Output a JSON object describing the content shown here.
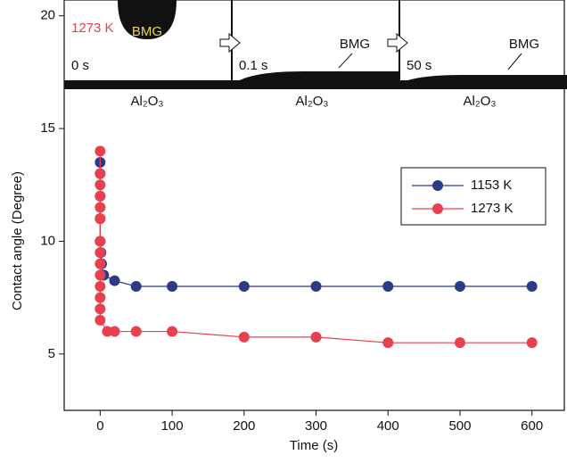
{
  "chart_data": {
    "type": "line",
    "x_label": "Time (s)",
    "y_label": "Contact angle (Degree)",
    "xlim": [
      -50,
      645
    ],
    "xticks": [
      0,
      100,
      200,
      300,
      400,
      500,
      600
    ],
    "ylim": [
      2.5,
      20.7
    ],
    "yticks": [
      5,
      10,
      15,
      20
    ],
    "legend": "upper right",
    "series": [
      {
        "name": "1153 K",
        "color": "#2e3a87",
        "x": [
          0,
          0,
          0,
          0,
          0,
          1,
          2,
          3,
          5,
          20,
          50,
          100,
          200,
          300,
          400,
          500,
          600
        ],
        "values": [
          13.5,
          13,
          12,
          11,
          10,
          9.5,
          9,
          8.5,
          8.5,
          8.25,
          8,
          8,
          8,
          8,
          8,
          8,
          8
        ]
      },
      {
        "name": "1273 K",
        "color": "#e8404e",
        "x": [
          0,
          0,
          0,
          0,
          0,
          0,
          0,
          0,
          0,
          0,
          0,
          0,
          0,
          0,
          10,
          20,
          50,
          100,
          200,
          300,
          400,
          500,
          600
        ],
        "values": [
          14,
          13,
          12.5,
          12,
          11.5,
          11,
          10,
          9.5,
          9,
          8.5,
          8,
          7.5,
          7,
          6.5,
          6,
          6,
          6,
          6,
          5.75,
          5.75,
          5.5,
          5.5,
          5.5
        ]
      }
    ],
    "inset": {
      "temperature": "1273 K",
      "droplet": "BMG",
      "times": [
        "0 s",
        "0.1 s",
        "50 s"
      ],
      "bmg_labels": [
        "BMG",
        "BMG"
      ],
      "substrate": [
        "Al₂O₃",
        "Al₂O₃",
        "Al₂O₃"
      ]
    }
  }
}
